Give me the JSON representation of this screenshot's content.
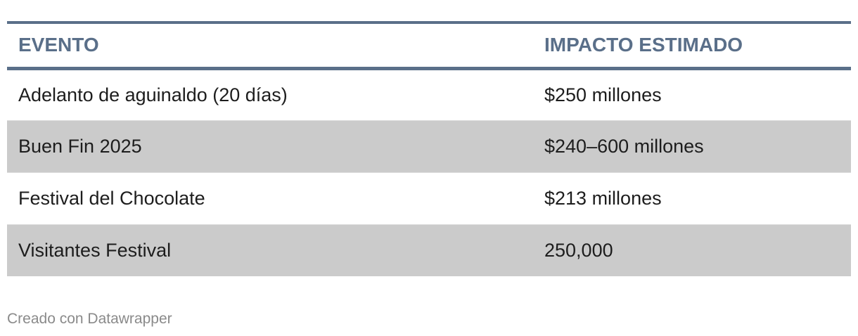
{
  "chart_data": {
    "type": "table",
    "columns": [
      "EVENTO",
      "IMPACTO ESTIMADO"
    ],
    "rows": [
      [
        "Adelanto de aguinaldo (20 días)",
        "$250 millones"
      ],
      [
        "Buen Fin 2025",
        "$240–600 millones"
      ],
      [
        "Festival del Chocolate",
        "$213 millones"
      ],
      [
        "Visitantes Festival",
        "250,000"
      ]
    ]
  },
  "colors": {
    "header_text": "#5a6f89",
    "header_rule": "#5a6f89",
    "stripe": "#cbcbcb",
    "body_text": "#1d1d1d",
    "footer_text": "#8a8a8a"
  },
  "footer": {
    "credit": "Creado con Datawrapper"
  }
}
